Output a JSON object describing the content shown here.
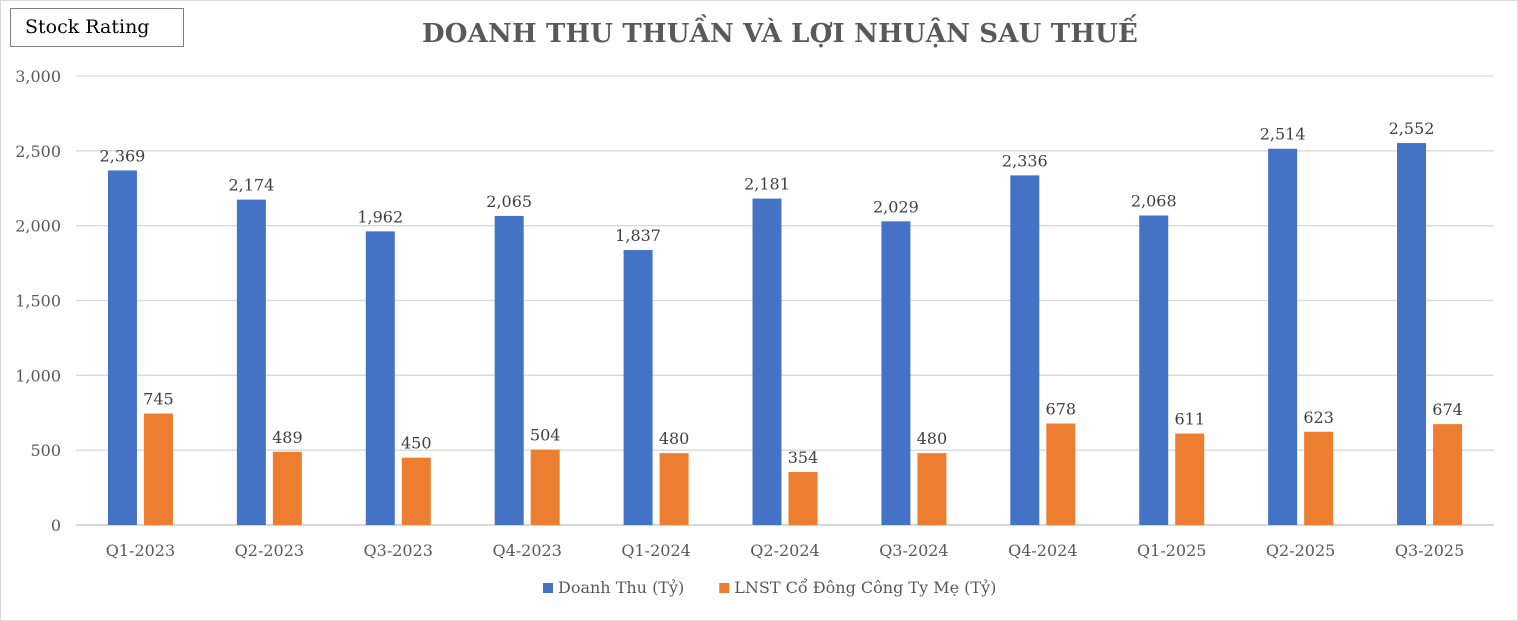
{
  "badge": "Stock Rating",
  "chart_data": {
    "type": "bar",
    "title": "DOANH THU THUẦN VÀ LỢI NHUẬN SAU THUẾ",
    "categories": [
      "Q1-2023",
      "Q2-2023",
      "Q3-2023",
      "Q4-2023",
      "Q1-2024",
      "Q2-2024",
      "Q3-2024",
      "Q4-2024",
      "Q1-2025",
      "Q2-2025",
      "Q3-2025"
    ],
    "series": [
      {
        "name": "Doanh Thu (Tỷ)",
        "color": "#4472c4",
        "values": [
          2369,
          2174,
          1962,
          2065,
          1837,
          2181,
          2029,
          2336,
          2068,
          2514,
          2552
        ]
      },
      {
        "name": "LNST Cổ Đông Công Ty Mẹ (Tỷ)",
        "color": "#ed7d31",
        "values": [
          745,
          489,
          450,
          504,
          480,
          354,
          480,
          678,
          611,
          623,
          674
        ]
      }
    ],
    "yticks": [
      "0",
      "500",
      "1,000",
      "1,500",
      "2,000",
      "2,500",
      "3,000"
    ],
    "ylim": [
      0,
      3000
    ],
    "grid": true,
    "data_labels": true,
    "legend": "bottom"
  }
}
